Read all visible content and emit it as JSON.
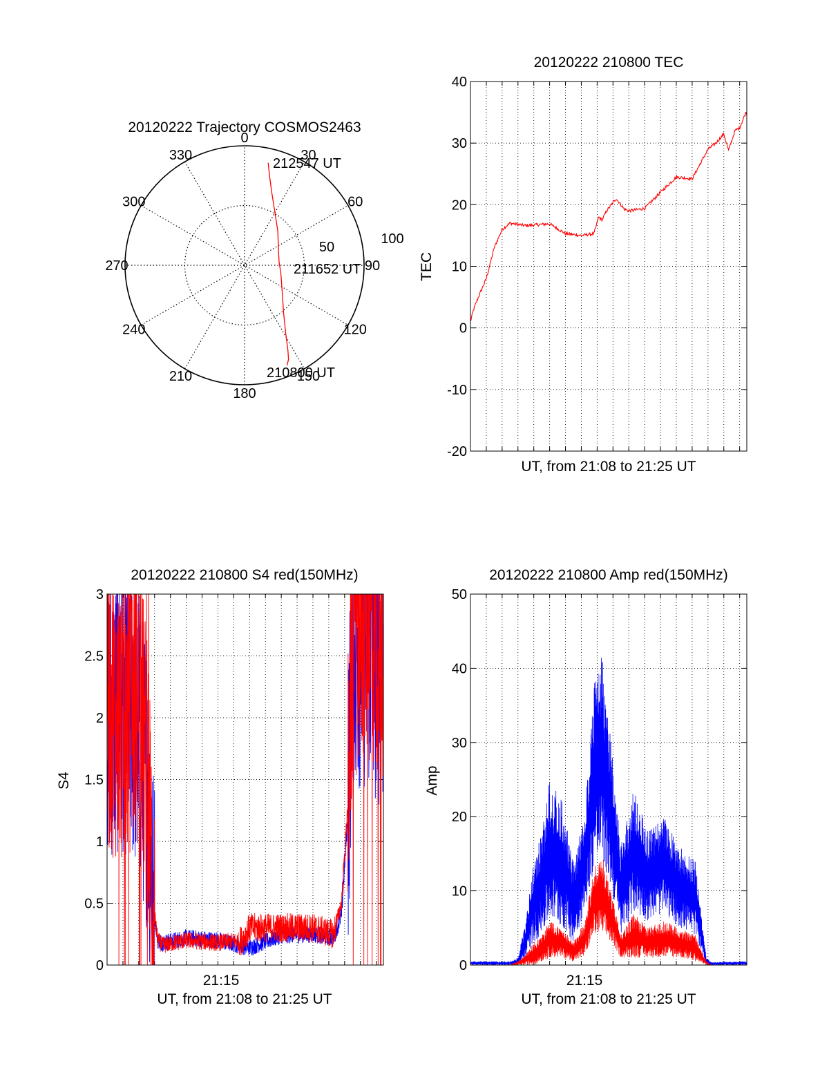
{
  "colors": {
    "red": "#ff0000",
    "blue": "#0000ff",
    "black": "#000000"
  },
  "chart_data": [
    {
      "type": "polar",
      "title": "20120222 Trajectory COSMOS2463",
      "angle_labels": [
        "0",
        "30",
        "60",
        "90",
        "120",
        "150",
        "180",
        "210",
        "240",
        "270",
        "300",
        "330"
      ],
      "radius_labels": [
        "50",
        "100"
      ],
      "rmax": 100,
      "grid": true,
      "annotations": [
        "212547 UT",
        "211652 UT",
        "210800 UT"
      ],
      "trajectory": {
        "color": "red",
        "points_az_dist": [
          [
            13,
            88
          ],
          [
            15.5,
            78
          ],
          [
            20,
            66
          ],
          [
            29,
            52
          ],
          [
            44,
            40
          ],
          [
            72,
            30
          ],
          [
            85,
            29
          ],
          [
            102,
            31
          ],
          [
            126,
            39
          ],
          [
            141,
            52
          ],
          [
            149,
            67
          ],
          [
            153,
            80
          ],
          [
            155,
            87
          ],
          [
            157,
            91
          ]
        ]
      }
    },
    {
      "type": "line",
      "title": "20120222 210800 TEC",
      "xlabel": "UT, from 21:08 to 21:25 UT",
      "ylabel": "TEC",
      "xlim": [
        0,
        17.45
      ],
      "ylim": [
        -20,
        40
      ],
      "yticks": [
        "-20",
        "-10",
        "0",
        "10",
        "20",
        "30",
        "40"
      ],
      "grid": true,
      "series": [
        {
          "color": "red",
          "x": [
            0,
            0.2,
            0.5,
            1.0,
            1.5,
            2.0,
            2.5,
            3.5,
            5.0,
            6.0,
            7.0,
            7.8,
            8.1,
            8.3,
            8.6,
            9.2,
            9.7,
            10.0,
            10.3,
            11.0,
            12.0,
            13.0,
            14.0,
            15.0,
            15.5,
            16.0,
            16.3,
            16.7,
            17.0,
            17.4
          ],
          "y": [
            1,
            3,
            5,
            8,
            13,
            16,
            17,
            16.6,
            16.9,
            15.3,
            15,
            15.3,
            18,
            17.5,
            19,
            21,
            19.3,
            19,
            19.1,
            19.4,
            22,
            24.5,
            24.2,
            29,
            30,
            31.5,
            28.8,
            32,
            32.5,
            35
          ]
        }
      ]
    },
    {
      "type": "line",
      "title": "20120222 210800 S4 red(150MHz)",
      "xlabel": "UT, from 21:08 to 21:25 UT",
      "ylabel": "S4",
      "xlim": [
        0,
        17.45
      ],
      "ylim": [
        0,
        3
      ],
      "xticks": [
        "21:15"
      ],
      "yticks": [
        "0",
        "0.5",
        "1",
        "1.5",
        "2",
        "2.5",
        "3"
      ],
      "grid": true,
      "series": [
        {
          "name": "",
          "color": "blue",
          "x": [
            0,
            1,
            2,
            2.6,
            2.9,
            3.2,
            3.5,
            5,
            7,
            9,
            11,
            13,
            14.3,
            14.8,
            15.2,
            15.5,
            16.5,
            17.45
          ],
          "y": [
            2.0,
            2.1,
            1.9,
            1.4,
            0.5,
            0.2,
            0.18,
            0.22,
            0.2,
            0.14,
            0.24,
            0.25,
            0.22,
            0.4,
            1.2,
            2.6,
            2.6,
            2.4
          ]
        },
        {
          "name": "",
          "color": "red",
          "x": [
            0,
            1,
            2,
            2.6,
            2.9,
            3.2,
            3.5,
            5,
            7,
            8.5,
            9,
            11,
            13,
            14.3,
            14.8,
            15.2,
            15.5,
            16.5,
            17.45
          ],
          "y": [
            2.1,
            2.0,
            2.2,
            1.4,
            0.5,
            0.2,
            0.16,
            0.2,
            0.18,
            0.2,
            0.3,
            0.3,
            0.3,
            0.25,
            0.5,
            1.3,
            2.7,
            2.8,
            2.6
          ]
        }
      ]
    },
    {
      "type": "line",
      "title": "20120222 210800 Amp red(150MHz)",
      "xlabel": "UT, from 21:08 to 21:25 UT",
      "ylabel": "Amp",
      "xlim": [
        0,
        17.45
      ],
      "ylim": [
        0,
        50
      ],
      "xticks": [
        "21:15"
      ],
      "yticks": [
        "0",
        "10",
        "20",
        "30",
        "40",
        "50"
      ],
      "grid": true,
      "series": [
        {
          "name": "",
          "color": "blue",
          "x": [
            0,
            2.5,
            3.0,
            3.5,
            4.0,
            4.5,
            5.0,
            5.8,
            6.5,
            7.2,
            7.8,
            8.3,
            8.9,
            9.5,
            10.3,
            11.2,
            12.2,
            13.2,
            14.2,
            14.9,
            15.2,
            17.45
          ],
          "y": [
            0.5,
            0.5,
            1,
            6,
            14,
            18,
            25,
            22,
            14,
            20,
            38,
            42,
            30,
            16,
            24,
            18,
            20,
            16,
            14,
            1,
            0.4,
            0.5
          ],
          "band_low": [
            0,
            0,
            0,
            1,
            3,
            4,
            6,
            5,
            3,
            7,
            13,
            14,
            10,
            4,
            7,
            6,
            7,
            5,
            4,
            0,
            0,
            0
          ]
        },
        {
          "name": "",
          "color": "red",
          "x": [
            0,
            2.5,
            3.0,
            3.5,
            4.0,
            4.5,
            5.0,
            5.8,
            6.5,
            7.2,
            7.8,
            8.3,
            8.9,
            9.5,
            10.3,
            11.2,
            12.2,
            13.2,
            14.2,
            14.9,
            15.2,
            17.45
          ],
          "y": [
            0,
            0,
            0.5,
            1.5,
            3,
            4,
            6,
            5,
            3,
            6,
            13,
            15,
            10,
            4,
            7,
            5,
            6,
            5,
            4,
            0.5,
            0,
            0
          ],
          "band_low": [
            0,
            0,
            0,
            0,
            0,
            0.5,
            1,
            1,
            0.5,
            1,
            4,
            4,
            3,
            1,
            1,
            1,
            1,
            1,
            0.5,
            0,
            0,
            0
          ]
        }
      ]
    }
  ]
}
